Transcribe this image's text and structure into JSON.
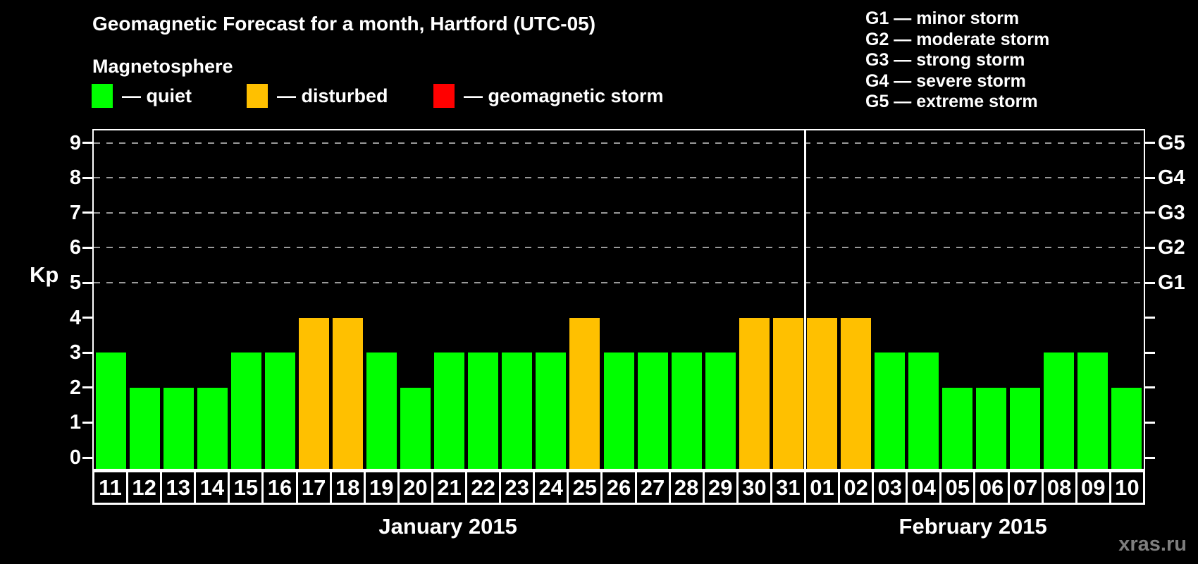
{
  "header": {
    "title": "Geomagnetic Forecast for a month, Hartford (UTC-05)",
    "subtitle": "Magnetosphere",
    "legend": [
      {
        "name": "quiet",
        "label": "— quiet",
        "color": "#00ff00"
      },
      {
        "name": "disturbed",
        "label": "— disturbed",
        "color": "#ffc000"
      },
      {
        "name": "storm",
        "label": "— geomagnetic storm",
        "color": "#ff0000"
      }
    ],
    "g_legend": [
      "G1 — minor storm",
      "G2 — moderate storm",
      "G3 — strong storm",
      "G4 — severe storm",
      "G5 — extreme storm"
    ]
  },
  "chart_data": {
    "type": "bar",
    "title": "Geomagnetic Forecast for a month, Hartford (UTC-05)",
    "ylabel": "Kp",
    "ylim": [
      0,
      9
    ],
    "yticks": [
      0,
      1,
      2,
      3,
      4,
      5,
      6,
      7,
      8,
      9
    ],
    "grid_levels": [
      5,
      6,
      7,
      8,
      9
    ],
    "grid_on": true,
    "right_axis": {
      "ticks": [
        {
          "label": "G1",
          "kp": 5
        },
        {
          "label": "G2",
          "kp": 6
        },
        {
          "label": "G3",
          "kp": 7
        },
        {
          "label": "G4",
          "kp": 8
        },
        {
          "label": "G5",
          "kp": 9
        }
      ]
    },
    "categories": [
      "11",
      "12",
      "13",
      "14",
      "15",
      "16",
      "17",
      "18",
      "19",
      "20",
      "21",
      "22",
      "23",
      "24",
      "25",
      "26",
      "27",
      "28",
      "29",
      "30",
      "31",
      "01",
      "02",
      "03",
      "04",
      "05",
      "06",
      "07",
      "08",
      "09",
      "10"
    ],
    "values": [
      3,
      2,
      2,
      2,
      3,
      3,
      4,
      4,
      3,
      2,
      3,
      3,
      3,
      3,
      4,
      3,
      3,
      3,
      3,
      4,
      4,
      4,
      4,
      3,
      3,
      2,
      2,
      2,
      3,
      3,
      2
    ],
    "statuses": [
      "quiet",
      "quiet",
      "quiet",
      "quiet",
      "quiet",
      "quiet",
      "disturbed",
      "disturbed",
      "quiet",
      "quiet",
      "quiet",
      "quiet",
      "quiet",
      "quiet",
      "disturbed",
      "quiet",
      "quiet",
      "quiet",
      "quiet",
      "disturbed",
      "disturbed",
      "disturbed",
      "disturbed",
      "quiet",
      "quiet",
      "quiet",
      "quiet",
      "quiet",
      "quiet",
      "quiet",
      "quiet"
    ],
    "colors": {
      "quiet": "#00ff00",
      "disturbed": "#ffc000",
      "storm": "#ff0000"
    },
    "months": [
      {
        "label": "January 2015",
        "days": 21
      },
      {
        "label": "February 2015",
        "days": 10
      }
    ]
  },
  "footer": {
    "watermark": "xras.ru"
  }
}
